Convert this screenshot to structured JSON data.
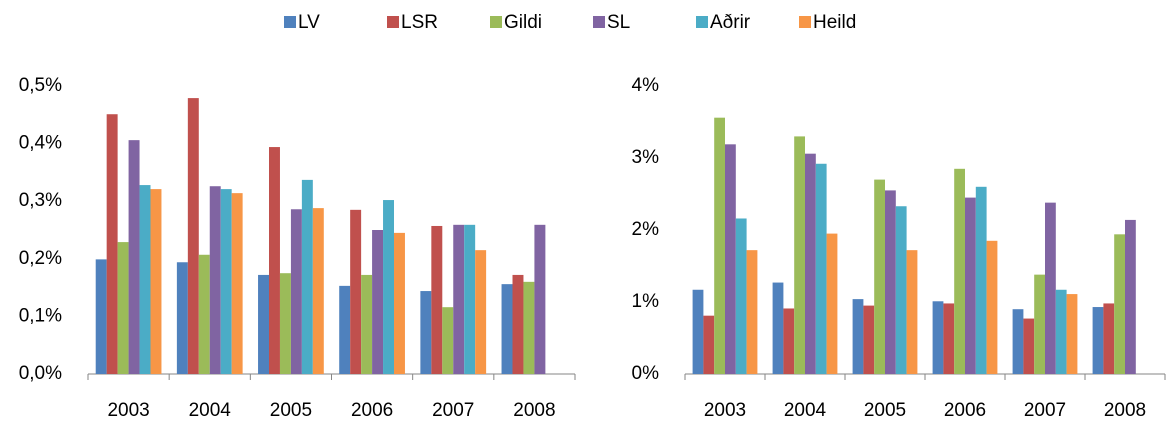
{
  "chart_data": [
    {
      "type": "bar",
      "categories": [
        "2003",
        "2004",
        "2005",
        "2006",
        "2007",
        "2008"
      ],
      "series": [
        {
          "name": "LV",
          "color": "#4f81bd",
          "values": [
            0.199,
            0.194,
            0.172,
            0.153,
            0.144,
            0.156
          ]
        },
        {
          "name": "LSR",
          "color": "#c0504d",
          "values": [
            0.451,
            0.479,
            0.394,
            0.285,
            0.257,
            0.172
          ]
        },
        {
          "name": "Gildi",
          "color": "#9bbb59",
          "values": [
            0.229,
            0.207,
            0.175,
            0.172,
            0.116,
            0.16
          ]
        },
        {
          "name": "SL",
          "color": "#8064a2",
          "values": [
            0.406,
            0.326,
            0.286,
            0.25,
            0.259,
            0.259
          ]
        },
        {
          "name": "Aðrir",
          "color": "#4bacc6",
          "values": [
            0.328,
            0.321,
            0.337,
            0.302,
            0.259,
            null
          ]
        },
        {
          "name": "Heild",
          "color": "#f79646",
          "values": [
            0.321,
            0.314,
            0.288,
            0.245,
            0.215,
            null
          ]
        }
      ],
      "ylim": [
        0,
        0.5
      ],
      "yticks": [
        {
          "value": 0,
          "label": "0,0%"
        },
        {
          "value": 0.1,
          "label": "0,1%"
        },
        {
          "value": 0.2,
          "label": "0,2%"
        },
        {
          "value": 0.3,
          "label": "0,3%"
        },
        {
          "value": 0.4,
          "label": "0,4%"
        },
        {
          "value": 0.5,
          "label": "0,5%"
        }
      ]
    },
    {
      "type": "bar",
      "categories": [
        "2003",
        "2004",
        "2005",
        "2006",
        "2007",
        "2008"
      ],
      "series": [
        {
          "color": "#4f81bd",
          "values": [
            1.17,
            1.27,
            1.04,
            1.01,
            0.9,
            0.93
          ]
        },
        {
          "color": "#c0504d",
          "values": [
            0.81,
            0.91,
            0.95,
            0.98,
            0.77,
            0.98
          ]
        },
        {
          "color": "#9bbb59",
          "values": [
            3.56,
            3.3,
            2.7,
            2.85,
            1.38,
            1.94
          ]
        },
        {
          "color": "#8064a2",
          "values": [
            3.19,
            3.06,
            2.55,
            2.45,
            2.38,
            2.14
          ]
        },
        {
          "color": "#4bacc6",
          "values": [
            2.16,
            2.92,
            2.33,
            2.6,
            1.17,
            null
          ]
        },
        {
          "color": "#f79646",
          "values": [
            1.72,
            1.95,
            1.72,
            1.85,
            1.11,
            null
          ]
        }
      ],
      "ylim": [
        0,
        4
      ],
      "yticks": [
        {
          "value": 0,
          "label": "0%"
        },
        {
          "value": 1,
          "label": "1%"
        },
        {
          "value": 2,
          "label": "2%"
        },
        {
          "value": 3,
          "label": "3%"
        },
        {
          "value": 4,
          "label": "4%"
        }
      ]
    }
  ]
}
